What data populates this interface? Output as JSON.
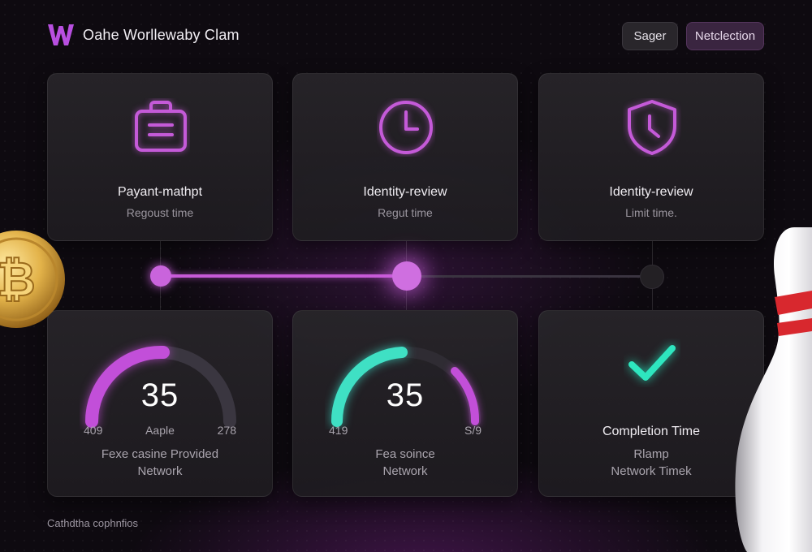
{
  "header": {
    "logo_icon": "w-logo-icon",
    "app_title": "Oahe Worllewaby Clam",
    "buttons": {
      "sager": "Sager",
      "netlection": "Netclection"
    }
  },
  "steps": [
    {
      "icon": "briefcase-icon",
      "title": "Payant-mathpt",
      "subtitle": "Regoust time"
    },
    {
      "icon": "clock-icon",
      "title": "Identity-review",
      "subtitle": "Regut time"
    },
    {
      "icon": "shield-clock-icon",
      "title": "Identity-review",
      "subtitle": "Limit time."
    }
  ],
  "timeline": {
    "active_step": 2,
    "total_steps": 3
  },
  "metrics": [
    {
      "value": "35",
      "min": "409",
      "mid": "Aaple",
      "max": "278",
      "desc_line1": "Fexe casine Provided",
      "desc_line2": "Network",
      "arc_color": "#c24fd9"
    },
    {
      "value": "35",
      "min": "419",
      "mid": "",
      "max": "S/9",
      "desc_line1": "Fea soince",
      "desc_line2": "Network",
      "arc_color": "#3fe0c4"
    },
    {
      "icon": "check-icon",
      "title": "Completion Time",
      "desc_line1": "Rlamp",
      "desc_line2": "Network Timek",
      "accent": "#2ee6bf"
    }
  ],
  "footer": {
    "text": "Cathdtha cophnfios"
  },
  "decor": {
    "coin": "bitcoin-coin-icon",
    "pin": "bowling-pin-icon"
  }
}
